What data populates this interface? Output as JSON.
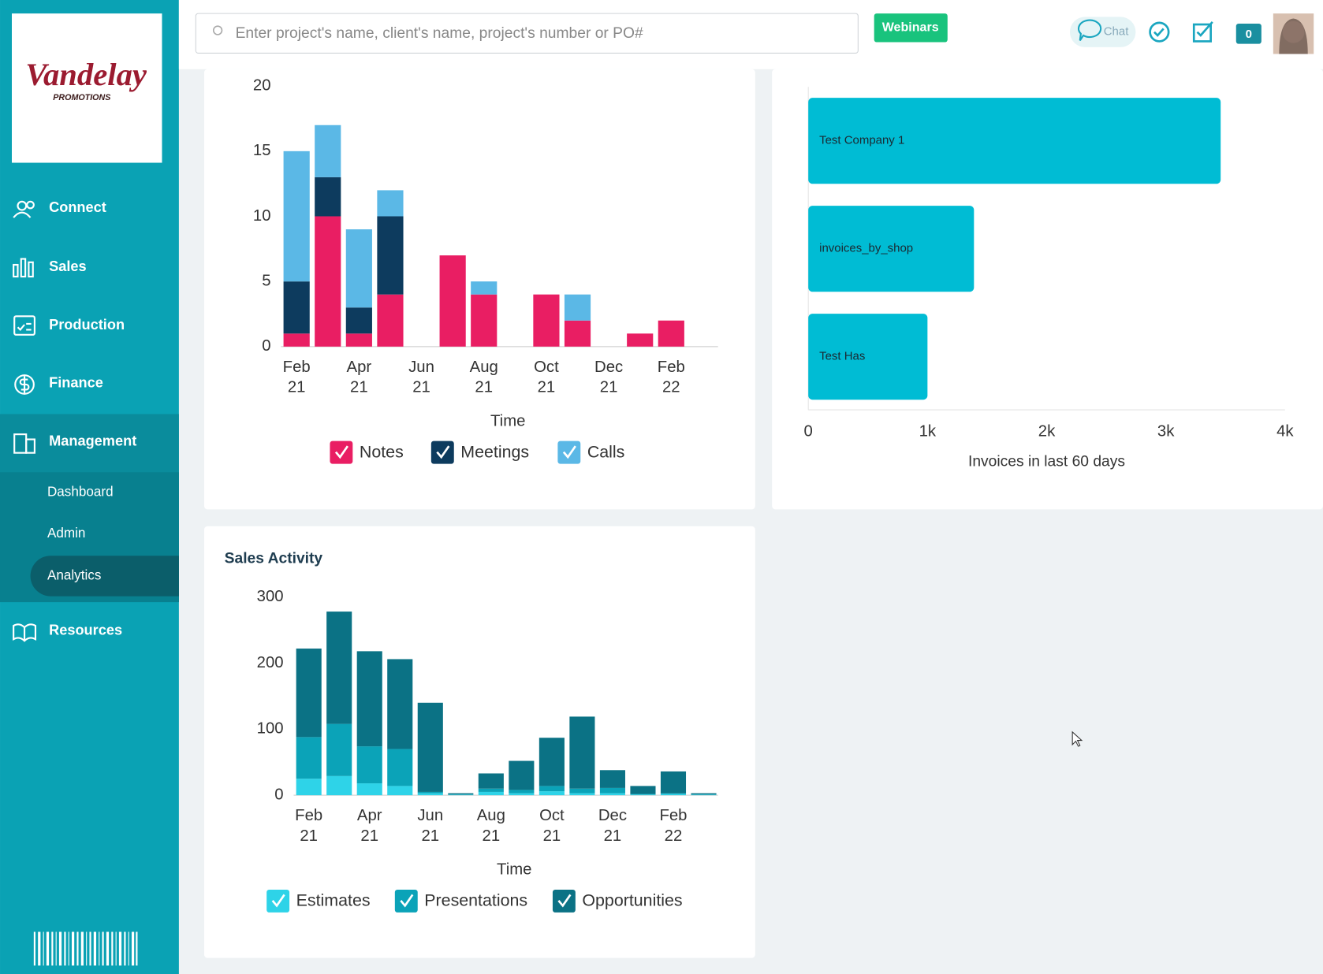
{
  "logo": {
    "name": "Vandelay",
    "tagline": "PROMOTIONS"
  },
  "header": {
    "search_placeholder": "Enter project's name, client's name, project's number or PO#",
    "webinars": "Webinars",
    "chat": "Chat",
    "badge": "0"
  },
  "sidebar": {
    "items": [
      "Connect",
      "Sales",
      "Production",
      "Finance",
      "Management",
      "Resources"
    ],
    "subitems": [
      "Dashboard",
      "Admin",
      "Analytics"
    ]
  },
  "chart_data": [
    {
      "type": "bar",
      "stacked": true,
      "categories": [
        "Feb 21",
        null,
        "Apr 21",
        null,
        "Jun 21",
        null,
        "Aug 21",
        null,
        "Oct 21",
        null,
        "Dec 21",
        null,
        "Feb 22"
      ],
      "xlabel": "Time",
      "ylim": [
        0,
        20
      ],
      "yticks": [
        0,
        5,
        10,
        15,
        20
      ],
      "series": [
        {
          "name": "Notes",
          "color": "#e91e63",
          "values": [
            1,
            10,
            1,
            4,
            0,
            7,
            4,
            0,
            4,
            2,
            0,
            1,
            2
          ]
        },
        {
          "name": "Meetings",
          "color": "#0d3b5e",
          "values": [
            4,
            3,
            2,
            6,
            0,
            0,
            0,
            0,
            0,
            0,
            0,
            0,
            0
          ]
        },
        {
          "name": "Calls",
          "color": "#5bb8e6",
          "values": [
            10,
            4,
            6,
            2,
            0,
            0,
            1,
            0,
            0,
            2,
            0,
            0,
            0
          ]
        }
      ]
    },
    {
      "type": "horizontal-bar",
      "categories": [
        "Test Company 1",
        "invoices_by_shop",
        "Test Has"
      ],
      "values": [
        3460,
        1390,
        1000
      ],
      "color": "#00bcd4",
      "xlim": [
        0,
        4000
      ],
      "xticks": [
        0,
        {
          "value": 1000,
          "label": "1k"
        },
        {
          "value": 2000,
          "label": "2k"
        },
        {
          "value": 3000,
          "label": "3k"
        },
        {
          "value": 4000,
          "label": "4k"
        }
      ],
      "xlabel": "Invoices in last 60 days"
    },
    {
      "type": "bar",
      "stacked": true,
      "title": "Sales Activity",
      "categories": [
        "Feb 21",
        null,
        "Apr 21",
        null,
        "Jun 21",
        null,
        "Aug 21",
        null,
        "Oct 21",
        null,
        "Dec 21",
        null,
        "Feb 22",
        null
      ],
      "xlabel": "Time",
      "ylim": [
        0,
        300
      ],
      "yticks": [
        0,
        100,
        200,
        300
      ],
      "series": [
        {
          "name": "Estimates",
          "color": "#2ed3e8",
          "values": [
            25,
            29,
            18,
            14,
            3,
            1,
            5,
            3,
            6,
            3,
            3,
            1,
            2,
            1
          ]
        },
        {
          "name": "Presentations",
          "color": "#0ba3b8",
          "values": [
            63,
            79,
            56,
            56,
            2,
            0,
            5,
            5,
            8,
            7,
            8,
            1,
            1,
            0
          ]
        },
        {
          "name": "Opportunities",
          "color": "#0b7285",
          "values": [
            134,
            170,
            144,
            136,
            135,
            2,
            23,
            44,
            73,
            109,
            27,
            12,
            33,
            2
          ]
        }
      ]
    }
  ]
}
